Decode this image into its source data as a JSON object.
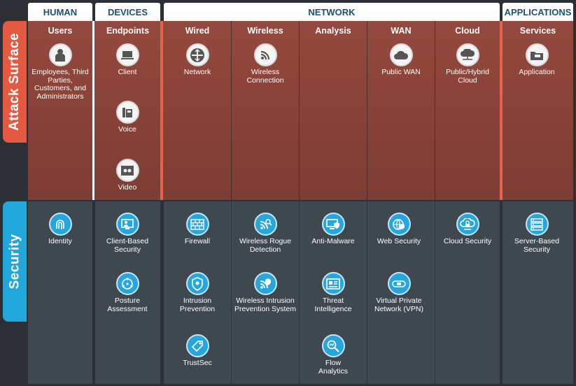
{
  "groups": {
    "human": "HUMAN",
    "devices": "DEVICES",
    "network": "NETWORK",
    "applications": "APPLICATIONS"
  },
  "side_labels": {
    "attack_surface": "Attack Surface",
    "security": "Security"
  },
  "columns": {
    "users": "Users",
    "endpoints": "Endpoints",
    "wired": "Wired",
    "wireless": "Wireless",
    "analysis": "Analysis",
    "wan": "WAN",
    "cloud": "Cloud",
    "services": "Services"
  },
  "attack": {
    "employees": "Employees, Third Parties, Customers, and Administrators",
    "client": "Client",
    "voice": "Voice",
    "video": "Video",
    "network": "Network",
    "wireless_connection": "Wireless Connection",
    "public_wan": "Public WAN",
    "public_hybrid_cloud": "Public/Hybrid Cloud",
    "application": "Application"
  },
  "security": {
    "identity": "Identity",
    "client_based_security": "Client-Based Security",
    "posture_assessment": "Posture Assessment",
    "firewall": "Firewall",
    "intrusion_prevention": "Intrusion Prevention",
    "trustsec": "TrustSec",
    "wireless_rogue_detection": "Wireless Rogue Detection",
    "wireless_intrusion_prevention": "Wireless Intrusion Prevention System",
    "anti_malware": "Anti-Malware",
    "threat_intelligence": "Threat Intelligence",
    "flow_analytics": "Flow Analytics",
    "web_security": "Web Security",
    "vpn": "Virtual Private Network (VPN)",
    "cloud_security": "Cloud Security",
    "server_based_security": "Server-Based Security"
  },
  "icons": {
    "user": "person-icon",
    "client": "laptop-icon",
    "voice": "phone-icon",
    "video": "video-icon",
    "network": "router-icon",
    "wireless": "wifi-icon",
    "public_wan": "cloud-icon",
    "hybrid_cloud": "cloud-network-icon",
    "application": "app-folder-icon",
    "identity": "fingerprint-icon",
    "client_security": "monitor-person-icon",
    "posture": "network-globe-icon",
    "firewall": "brick-wall-icon",
    "ips": "shield-icon",
    "trustsec": "tag-icon",
    "rogue": "wifi-search-icon",
    "wips": "wifi-shield-icon",
    "anti_malware": "monitor-shield-icon",
    "threat_intel": "document-icon",
    "flow": "magnifier-icon",
    "web_security": "globe-shield-icon",
    "vpn": "tunnel-icon",
    "cloud_security": "cloud-lock-icon",
    "server_security": "server-icon"
  },
  "colors": {
    "attack_accent": "#e35a40",
    "security_accent": "#22a7dc",
    "header_text": "#1d4f7a",
    "background": "#2c3036"
  }
}
